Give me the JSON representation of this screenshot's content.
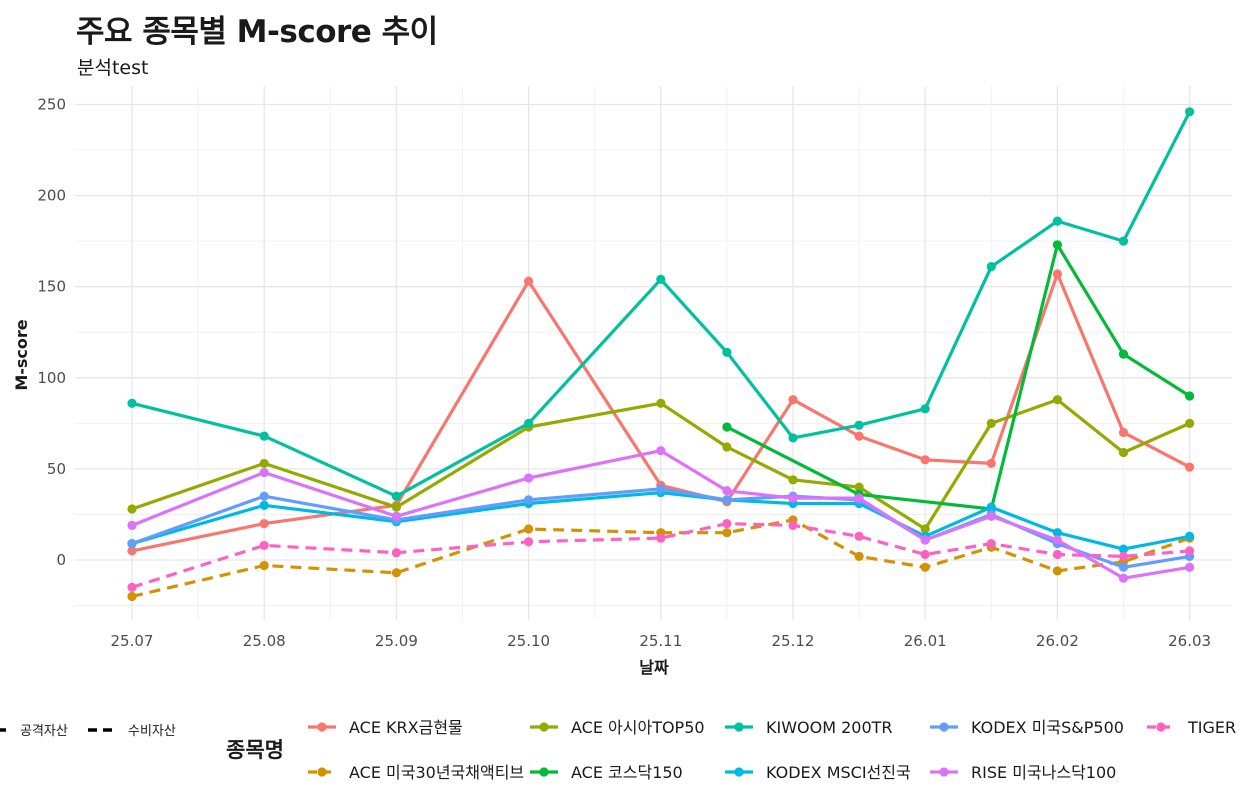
{
  "chart_data": {
    "type": "line",
    "title": "주요 종목별 M-score 추이",
    "subtitle": "분석test",
    "xlabel": "날짜",
    "ylabel": "M-score",
    "x_ticks": [
      "25.07",
      "25.08",
      "25.09",
      "25.10",
      "25.11",
      "25.12",
      "26.01",
      "26.02",
      "26.03"
    ],
    "y_ticks": [
      0,
      50,
      100,
      150,
      200,
      250
    ],
    "xlim": [
      0,
      8.7
    ],
    "ylim": [
      -28,
      258
    ],
    "grid": true,
    "legend_title": "종목명",
    "linetype_legend": [
      {
        "label": "공격자산",
        "style": "solid"
      },
      {
        "label": "수비자산",
        "style": "dashed"
      }
    ],
    "series": [
      {
        "name": "ACE KRX금현물",
        "color": "#F8766D",
        "style": "solid",
        "x": [
          0,
          1,
          2,
          3,
          4,
          4.5,
          5,
          5.5,
          6,
          6.5,
          7,
          7.5,
          8
        ],
        "y": [
          5,
          20,
          30,
          153,
          41,
          32,
          88,
          68,
          55,
          53,
          157,
          70,
          51
        ]
      },
      {
        "name": "ACE 미국30년국채액티브",
        "color": "#D39200",
        "style": "dashed",
        "x": [
          0,
          1,
          2,
          3,
          4,
          4.5,
          5,
          5.5,
          6,
          6.5,
          7,
          7.5,
          8
        ],
        "y": [
          -20,
          -3,
          -7,
          17,
          15,
          15,
          22,
          2,
          -4,
          7,
          -6,
          -1,
          12
        ]
      },
      {
        "name": "ACE 아시아TOP50",
        "color": "#93AA00",
        "style": "solid",
        "x": [
          0,
          1,
          2,
          3,
          4,
          4.5,
          5,
          5.5,
          6,
          6.5,
          7,
          7.5,
          8
        ],
        "y": [
          28,
          53,
          29,
          73,
          86,
          62,
          44,
          40,
          17,
          75,
          88,
          59,
          75
        ]
      },
      {
        "name": "ACE 코스닥150",
        "color": "#00BA38",
        "style": "solid",
        "x": [
          4.5,
          5.5,
          6.5,
          7,
          7.5,
          8
        ],
        "y": [
          73,
          36,
          28,
          173,
          113,
          90
        ]
      },
      {
        "name": "KIWOOM 200TR",
        "color": "#00C19F",
        "style": "solid",
        "x": [
          0,
          1,
          2,
          3,
          4,
          4.5,
          5,
          5.5,
          6,
          6.5,
          7,
          7.5,
          8
        ],
        "y": [
          86,
          68,
          35,
          75,
          154,
          114,
          67,
          74,
          83,
          161,
          186,
          175,
          246
        ]
      },
      {
        "name": "KODEX MSCI선진국",
        "color": "#00B9E3",
        "style": "solid",
        "x": [
          0,
          1,
          2,
          3,
          4,
          4.5,
          5,
          5.5,
          6,
          6.5,
          7,
          7.5,
          8
        ],
        "y": [
          9,
          30,
          21,
          31,
          37,
          33,
          31,
          31,
          13,
          29,
          15,
          6,
          13
        ]
      },
      {
        "name": "KODEX 미국S&P500",
        "color": "#619CFF",
        "style": "solid",
        "x": [
          0,
          1,
          2,
          3,
          4,
          4.5,
          5,
          5.5,
          6,
          6.5,
          7,
          7.5,
          8
        ],
        "y": [
          9,
          35,
          22,
          33,
          39,
          33,
          35,
          33,
          11,
          25,
          9,
          -4,
          2
        ]
      },
      {
        "name": "RISE 미국나스닥100",
        "color": "#DB72FB",
        "style": "solid",
        "x": [
          0,
          1,
          2,
          3,
          4,
          4.5,
          5,
          5.5,
          6,
          6.5,
          7,
          7.5,
          8
        ],
        "y": [
          19,
          48,
          24,
          45,
          60,
          38,
          34,
          34,
          11,
          24,
          11,
          -10,
          -4
        ]
      },
      {
        "name": "TIGER",
        "color": "#FF61C3",
        "style": "dashed",
        "x": [
          0,
          1,
          2,
          3,
          4,
          4.5,
          5,
          5.5,
          6,
          6.5,
          7,
          7.5,
          8
        ],
        "y": [
          -15,
          8,
          4,
          10,
          12,
          20,
          19,
          13,
          3,
          9,
          3,
          2,
          5
        ]
      }
    ]
  }
}
